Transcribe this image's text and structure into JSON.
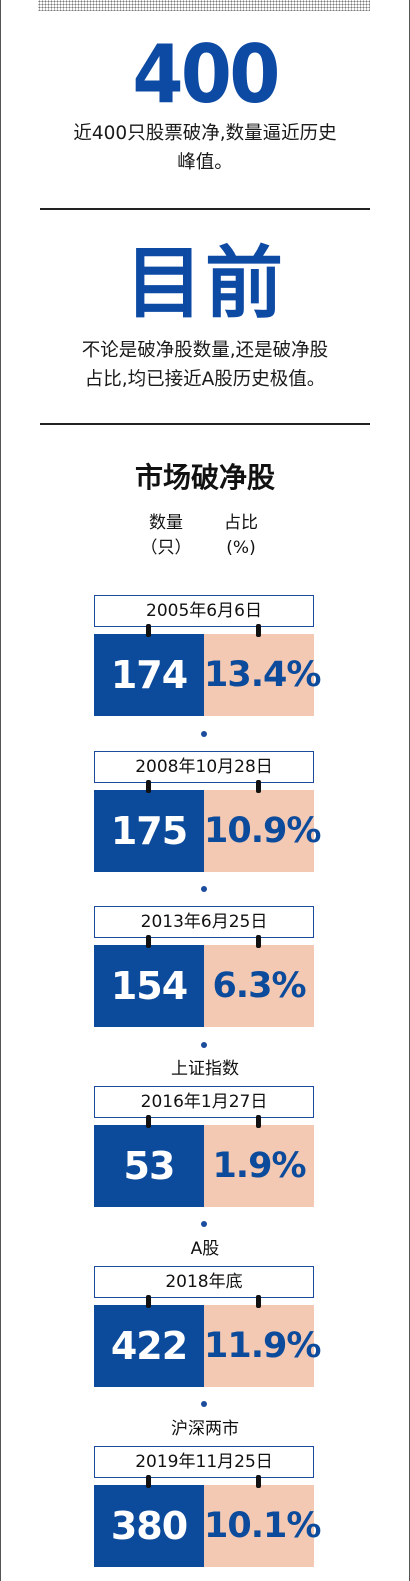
{
  "colors": {
    "accent_blue": "#0d4aa3",
    "count_bg": "#0c4b9c",
    "pct_bg": "#f3c9b3",
    "rule": "#222222"
  },
  "stat": {
    "number": "400",
    "caption_line1": "近400只股票破净,数量逼近历史",
    "caption_line2": "峰值。"
  },
  "current": {
    "title": "目前",
    "caption_line1": "不论是破净股数量,还是破净股",
    "caption_line2": "占比,均已接近A股历史极值。"
  },
  "section": {
    "title": "市场破净股",
    "col_count_line1": "数量",
    "col_count_line2": "（只）",
    "col_pct_line1": "占比",
    "col_pct_line2": "(%)"
  },
  "entries": [
    {
      "label": "",
      "date": "2005年6月6日",
      "count": "174",
      "pct": "13.4%"
    },
    {
      "label": "",
      "date": "2008年10月28日",
      "count": "175",
      "pct": "10.9%"
    },
    {
      "label": "",
      "date": "2013年6月25日",
      "count": "154",
      "pct": "6.3%"
    },
    {
      "label": "上证指数",
      "date": "2016年1月27日",
      "count": "53",
      "pct": "1.9%"
    },
    {
      "label": "A股",
      "date": "2018年底",
      "count": "422",
      "pct": "11.9%"
    },
    {
      "label": "沪深两市",
      "date": "2019年11月25日",
      "count": "380",
      "pct": "10.1%"
    }
  ]
}
